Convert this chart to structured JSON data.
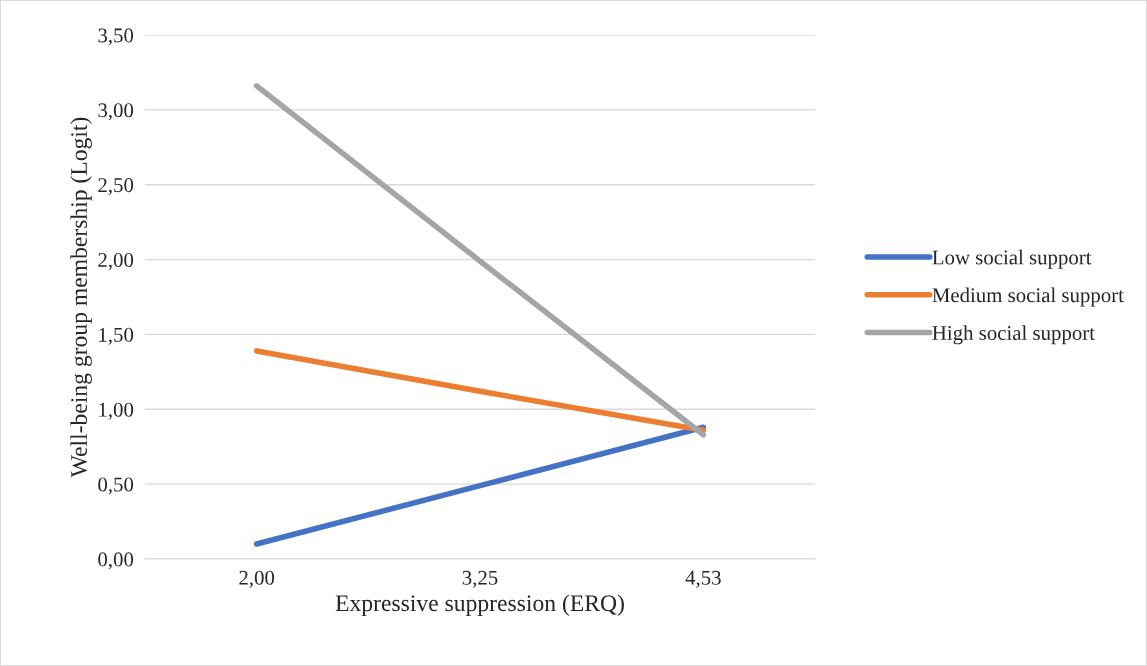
{
  "chart_data": {
    "type": "line",
    "xlabel": "Expressive suppression (ERQ)",
    "ylabel": "Well-being group membership (Logit)",
    "categories": [
      "2,00",
      "3,25",
      "4,53"
    ],
    "series": [
      {
        "name": "Low social support",
        "color": "#4472c4",
        "values": [
          0.1,
          0.49,
          0.88
        ]
      },
      {
        "name": "Medium social support",
        "color": "#ed7d31",
        "values": [
          1.39,
          1.12,
          0.86
        ]
      },
      {
        "name": "High social support",
        "color": "#a5a5a5",
        "values": [
          3.16,
          1.99,
          0.83
        ]
      }
    ],
    "ylim": [
      0,
      3.5
    ],
    "yticks": [
      {
        "value": 0,
        "label": "0,00"
      },
      {
        "value": 0.5,
        "label": "0,50"
      },
      {
        "value": 1,
        "label": "1,00"
      },
      {
        "value": 1.5,
        "label": "1,50"
      },
      {
        "value": 2,
        "label": "2,00"
      },
      {
        "value": 2.5,
        "label": "2,50"
      },
      {
        "value": 3,
        "label": "3,00"
      },
      {
        "value": 3.5,
        "label": "3,50"
      }
    ],
    "grid": "y",
    "legend": "right",
    "marker": "none",
    "line_style": "solid"
  }
}
